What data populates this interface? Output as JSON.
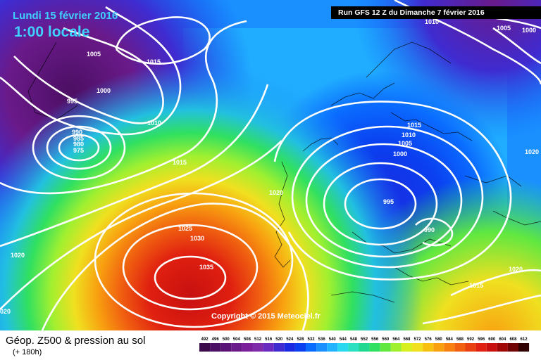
{
  "header": {
    "date": "Lundi 15 février 2016",
    "time": "1:00 locale",
    "run": "Run GFS 12 Z du Dimanche 7 février 2016"
  },
  "copyright": "Copyright © 2015 Meteociel.fr",
  "legend": {
    "title": "Géop. Z500 & pression au sol",
    "subtitle": "(+ 180h)",
    "scale_values": [
      "492",
      "496",
      "500",
      "504",
      "508",
      "512",
      "516",
      "520",
      "524",
      "528",
      "532",
      "536",
      "540",
      "544",
      "548",
      "552",
      "556",
      "560",
      "564",
      "568",
      "572",
      "576",
      "580",
      "584",
      "588",
      "592",
      "596",
      "600",
      "604",
      "608",
      "612"
    ],
    "scale_colors": [
      "#3a0a4a",
      "#4b0f63",
      "#5a1478",
      "#6a1a8a",
      "#7a1e9a",
      "#7f2aa8",
      "#6a2ac0",
      "#3f2bd0",
      "#1a2ae0",
      "#0a40f0",
      "#0a6cff",
      "#1a90ff",
      "#22b4ff",
      "#2ad8f0",
      "#2ae0c0",
      "#20d890",
      "#30e060",
      "#60e840",
      "#a0f030",
      "#d8f020",
      "#f0e020",
      "#f8c010",
      "#f8a010",
      "#f88010",
      "#f06010",
      "#e84010",
      "#e02010",
      "#c81010",
      "#a00808",
      "#700404",
      "#300000"
    ]
  },
  "isobars": [
    {
      "label": "1005"
    },
    {
      "label": "1000"
    },
    {
      "label": "995"
    },
    {
      "label": "990"
    },
    {
      "label": "985"
    },
    {
      "label": "980"
    },
    {
      "label": "975"
    },
    {
      "label": "1015"
    },
    {
      "label": "1010"
    },
    {
      "label": "1015"
    },
    {
      "label": "1020"
    },
    {
      "label": "1025"
    },
    {
      "label": "1030"
    },
    {
      "label": "1035"
    },
    {
      "label": "1020"
    },
    {
      "label": "020"
    },
    {
      "label": "1015"
    },
    {
      "label": "1010"
    },
    {
      "label": "1005"
    },
    {
      "label": "1000"
    },
    {
      "label": "995"
    },
    {
      "label": "990"
    },
    {
      "label": "1020"
    },
    {
      "label": "1020"
    },
    {
      "label": "1015"
    },
    {
      "label": "1010"
    },
    {
      "label": "1005"
    },
    {
      "label": "1000"
    }
  ]
}
